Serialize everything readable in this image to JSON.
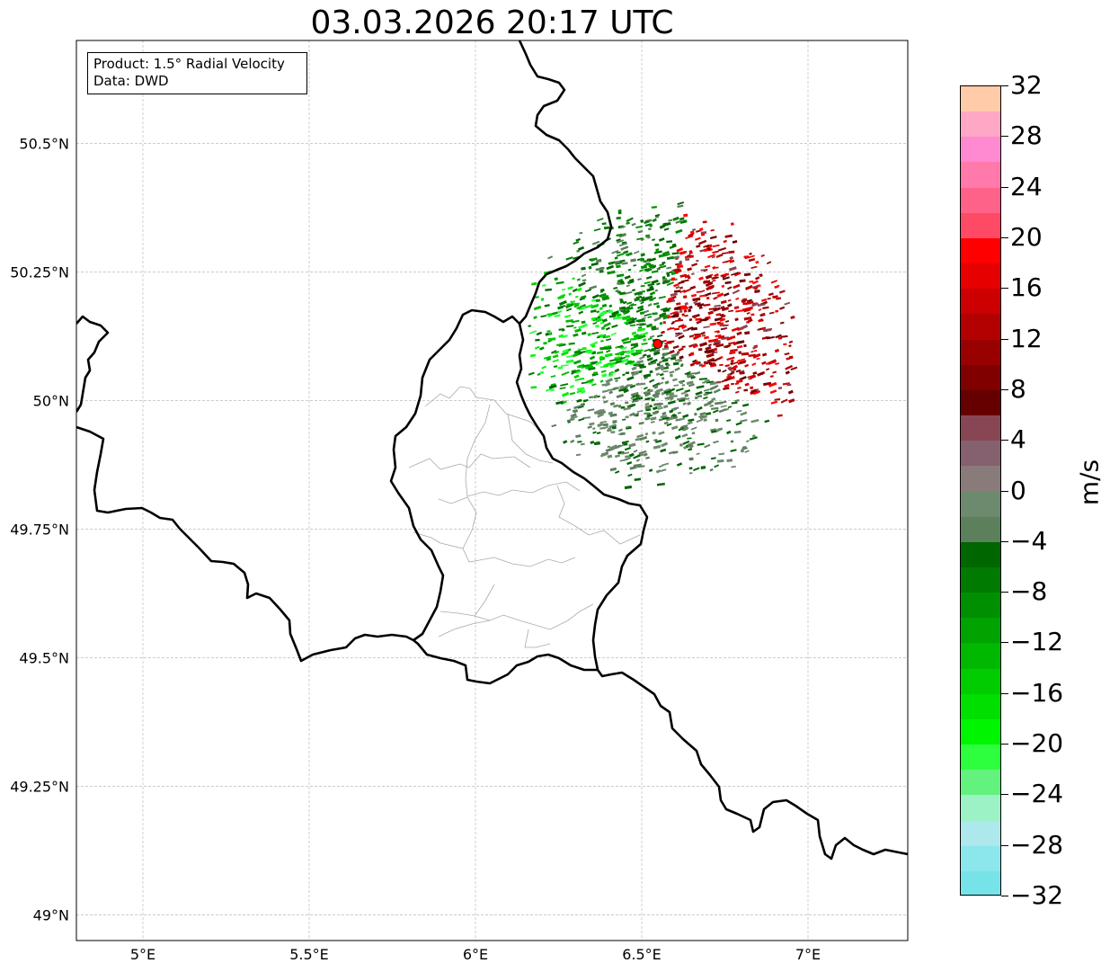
{
  "title": "03.03.2026 20:17 UTC",
  "info": {
    "product": "Product: 1.5° Radial Velocity",
    "source": "Data: DWD"
  },
  "map": {
    "lon_range": [
      4.8,
      7.3
    ],
    "lat_range": [
      48.95,
      50.7
    ],
    "lat_ticks": [
      {
        "value": 50.5,
        "label": "50.5°N"
      },
      {
        "value": 50.25,
        "label": "50.25°N"
      },
      {
        "value": 50.0,
        "label": "50°N"
      },
      {
        "value": 49.75,
        "label": "49.75°N"
      },
      {
        "value": 49.5,
        "label": "49.5°N"
      },
      {
        "value": 49.25,
        "label": "49.25°N"
      },
      {
        "value": 49.0,
        "label": "49°N"
      }
    ],
    "lon_ticks": [
      {
        "value": 5.0,
        "label": "5°E"
      },
      {
        "value": 5.5,
        "label": "5.5°E"
      },
      {
        "value": 6.0,
        "label": "6°E"
      },
      {
        "value": 6.5,
        "label": "6.5°E"
      },
      {
        "value": 7.0,
        "label": "7°E"
      }
    ],
    "radar_site": {
      "lon": 6.548,
      "lat": 50.11
    },
    "radar_range_deg": {
      "lon": 0.43,
      "lat": 0.29
    },
    "border_color": "#000000",
    "admin_color": "#aaaaaa",
    "grid_color": "#bbbbbb",
    "site_color": "#ff0000"
  },
  "colorbar": {
    "unit": "m/s",
    "min": -32,
    "max": 32,
    "ticks": [
      "32",
      "28",
      "24",
      "20",
      "16",
      "12",
      "8",
      "4",
      "0",
      "−4",
      "−8",
      "−12",
      "−16",
      "−20",
      "−24",
      "−28",
      "−32"
    ],
    "colors_top_to_bottom": [
      "#ffcba8",
      "#ffa8c5",
      "#ff8ad2",
      "#ff79aa",
      "#ff6289",
      "#ff4a66",
      "#ff0000",
      "#e60000",
      "#cc0000",
      "#b30000",
      "#990000",
      "#800000",
      "#660000",
      "#884654",
      "#85606e",
      "#8a7b7b",
      "#6e8a6e",
      "#5c7f5c",
      "#006600",
      "#007a00",
      "#008f00",
      "#00a300",
      "#00b800",
      "#00cc00",
      "#00e000",
      "#00f500",
      "#2dff3e",
      "#63f27d",
      "#9cf1c5",
      "#ace8ec",
      "#8be7ec",
      "#76e3e8"
    ]
  }
}
